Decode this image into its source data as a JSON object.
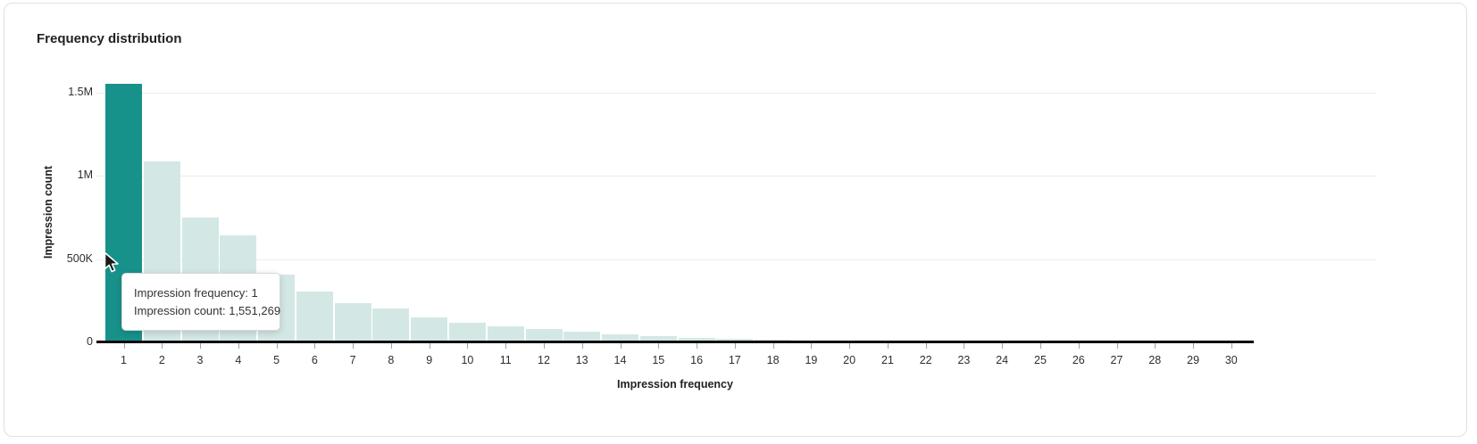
{
  "card": {
    "title": "Frequency distribution"
  },
  "chart_data": {
    "type": "bar",
    "title": "Frequency distribution",
    "xlabel": "Impression frequency",
    "ylabel": "Impression count",
    "categories": [
      "1",
      "2",
      "3",
      "4",
      "5",
      "6",
      "7",
      "8",
      "9",
      "10",
      "11",
      "12",
      "13",
      "14",
      "15",
      "16",
      "17",
      "18",
      "19",
      "20",
      "21",
      "22",
      "23",
      "24",
      "25",
      "26",
      "27",
      "28",
      "29",
      "30"
    ],
    "values": [
      1551269,
      1085000,
      750000,
      645000,
      408000,
      304000,
      235000,
      203000,
      152000,
      117000,
      95000,
      81000,
      62000,
      50000,
      37000,
      29000,
      20000,
      16000,
      9000,
      5000,
      3000,
      2000,
      1500,
      1000,
      800,
      600,
      500,
      400,
      300,
      200
    ],
    "ylim": [
      0,
      1600000
    ],
    "yticks": [
      {
        "value": 0,
        "label": "0"
      },
      {
        "value": 500000,
        "label": "500K"
      },
      {
        "value": 1000000,
        "label": "1M"
      },
      {
        "value": 1500000,
        "label": "1.5M"
      }
    ],
    "grid": "horizontal",
    "legend": "none",
    "highlighted_bar_index": 0,
    "colors": {
      "bar": "#d3e8e5",
      "highlighted_bar": "#17928b",
      "axis": "#0a0a0a",
      "gridline": "#ececec"
    }
  },
  "tooltip": {
    "lines": [
      "Impression frequency: 1",
      "Impression count: 1,551,269"
    ]
  }
}
